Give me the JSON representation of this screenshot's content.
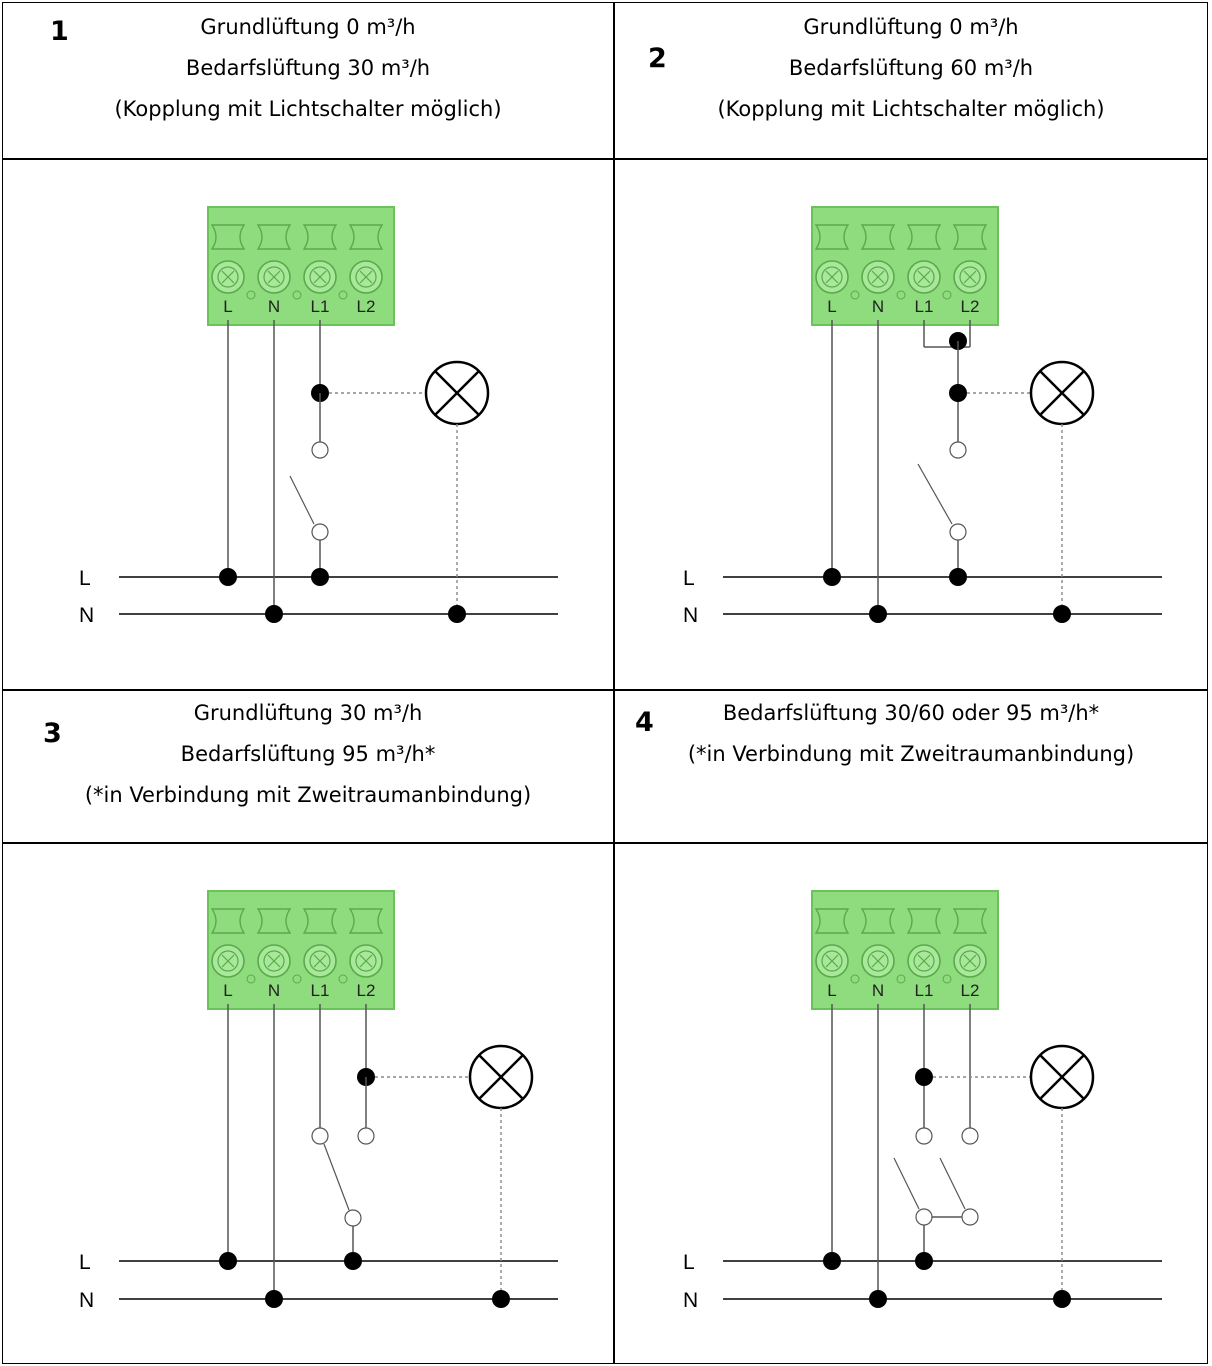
{
  "panels": [
    {
      "number": "1",
      "line1": "Grundlüftung 0 m³/h",
      "line2": "Bedarfslüftung 30 m³/h",
      "line3": "(Kopplung mit Lichtschalter möglich)"
    },
    {
      "number": "2",
      "line1": "Grundlüftung 0 m³/h",
      "line2": "Bedarfslüftung 60 m³/h",
      "line3": "(Kopplung mit Lichtschalter möglich)"
    },
    {
      "number": "3",
      "line1": "Grundlüftung 30 m³/h",
      "line2": "Bedarfslüftung 95 m³/h*",
      "line3": "(*in Verbindung mit Zweitraumanbindung)"
    },
    {
      "number": "4",
      "line1": "",
      "line2": "Bedarfslüftung 30/60 oder 95 m³/h*",
      "line3": "(*in Verbindung mit Zweitraumanbindung)"
    }
  ],
  "terminals": [
    "L",
    "N",
    "L1",
    "L2"
  ],
  "bus_labels": {
    "l": "L",
    "n": "N"
  },
  "colors": {
    "terminal_block": "#8fdc7e",
    "terminal_block_border": "#6cc25a",
    "wire": "#555555",
    "bus": "#000000",
    "dotted": "#888888"
  }
}
